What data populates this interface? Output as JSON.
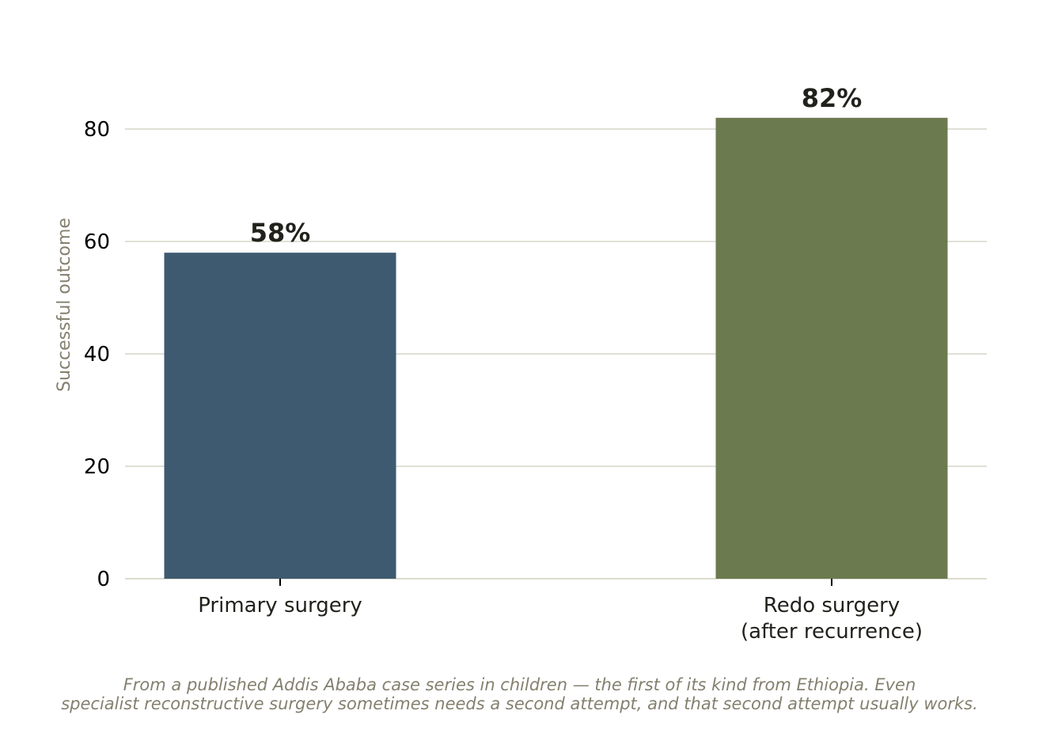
{
  "chart_data": {
    "type": "bar",
    "categories": [
      [
        "Primary surgery"
      ],
      [
        "Redo surgery",
        "(after recurrence)"
      ]
    ],
    "values": [
      58,
      82
    ],
    "value_labels": [
      "58%",
      "82%"
    ],
    "bar_colors": [
      "#3d5a70",
      "#6b7a4f"
    ],
    "ylabel": "Successful outcome",
    "xlabel": "",
    "ylim": [
      0,
      92
    ],
    "yticks": [
      0,
      20,
      40,
      60,
      80
    ],
    "grid": true,
    "grid_color": "#d6d6c8",
    "text_color": "#22221c",
    "ylabel_color": "#84806f"
  },
  "caption": {
    "line1": "From a published Addis Ababa case series in children — the first of its kind from Ethiopia. Even",
    "line2": "specialist reconstructive surgery sometimes needs a second attempt, and that second attempt usually works."
  }
}
